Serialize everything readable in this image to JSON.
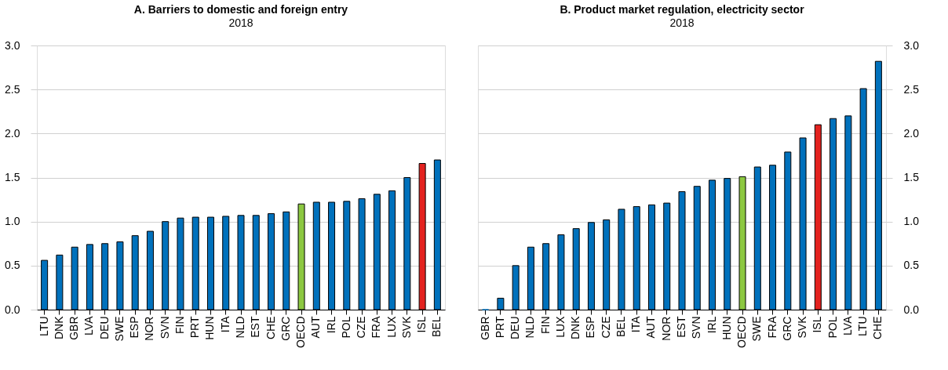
{
  "chart_data": [
    {
      "type": "bar",
      "title": "A. Barriers to domestic and foreign entry",
      "subtitle": "2018",
      "categories": [
        "LTU",
        "DNK",
        "GBR",
        "LVA",
        "DEU",
        "SWE",
        "ESP",
        "NOR",
        "SVN",
        "FIN",
        "PRT",
        "HUN",
        "ITA",
        "NLD",
        "EST",
        "CHE",
        "GRC",
        "OECD",
        "AUT",
        "IRL",
        "POL",
        "CZE",
        "FRA",
        "LUX",
        "SVK",
        "ISL",
        "BEL"
      ],
      "values": [
        0.56,
        0.62,
        0.71,
        0.74,
        0.75,
        0.77,
        0.84,
        0.89,
        1.0,
        1.04,
        1.05,
        1.05,
        1.06,
        1.07,
        1.07,
        1.09,
        1.11,
        1.2,
        1.22,
        1.22,
        1.23,
        1.26,
        1.31,
        1.35,
        1.5,
        1.66,
        1.7
      ],
      "colors": [
        "#0071bc",
        "#0071bc",
        "#0071bc",
        "#0071bc",
        "#0071bc",
        "#0071bc",
        "#0071bc",
        "#0071bc",
        "#0071bc",
        "#0071bc",
        "#0071bc",
        "#0071bc",
        "#0071bc",
        "#0071bc",
        "#0071bc",
        "#0071bc",
        "#0071bc",
        "#8cc841",
        "#0071bc",
        "#0071bc",
        "#0071bc",
        "#0071bc",
        "#0071bc",
        "#0071bc",
        "#0071bc",
        "#e3221f",
        "#0071bc"
      ],
      "ylim": [
        0,
        3
      ],
      "yticks": [
        {
          "value": 0,
          "label": "0.0"
        },
        0.5,
        {
          "value": 1,
          "label": "1.0"
        },
        1.5,
        {
          "value": 2,
          "label": "2.0"
        },
        2.5,
        {
          "value": 3,
          "label": "3.0"
        }
      ],
      "grid": "y"
    },
    {
      "type": "bar",
      "title": "B. Product market regulation, electricity sector",
      "subtitle": "2018",
      "categories": [
        "GBR",
        "PRT",
        "DEU",
        "NLD",
        "FIN",
        "LUX",
        "DNK",
        "ESP",
        "CZE",
        "BEL",
        "ITA",
        "AUT",
        "NOR",
        "EST",
        "SVN",
        "IRL",
        "HUN",
        "OECD",
        "SWE",
        "FRA",
        "GRC",
        "SVK",
        "ISL",
        "POL",
        "LVA",
        "LTU",
        "CHE"
      ],
      "values": [
        0.0,
        0.13,
        0.5,
        0.71,
        0.75,
        0.85,
        0.92,
        0.99,
        1.02,
        1.14,
        1.17,
        1.19,
        1.21,
        1.34,
        1.4,
        1.47,
        1.49,
        1.51,
        1.62,
        1.64,
        1.79,
        1.95,
        2.1,
        2.17,
        2.2,
        2.51,
        2.82
      ],
      "colors": [
        "#0071bc",
        "#0071bc",
        "#0071bc",
        "#0071bc",
        "#0071bc",
        "#0071bc",
        "#0071bc",
        "#0071bc",
        "#0071bc",
        "#0071bc",
        "#0071bc",
        "#0071bc",
        "#0071bc",
        "#0071bc",
        "#0071bc",
        "#0071bc",
        "#0071bc",
        "#8cc841",
        "#0071bc",
        "#0071bc",
        "#0071bc",
        "#0071bc",
        "#e3221f",
        "#0071bc",
        "#0071bc",
        "#0071bc",
        "#0071bc"
      ],
      "ylim": [
        0,
        3
      ],
      "yticks": [
        {
          "value": 0,
          "label": "0.0"
        },
        0.5,
        {
          "value": 1,
          "label": "1.0"
        },
        1.5,
        {
          "value": 2,
          "label": "2.0"
        },
        2.5,
        {
          "value": 3,
          "label": "3.0"
        }
      ],
      "grid": "y"
    }
  ]
}
